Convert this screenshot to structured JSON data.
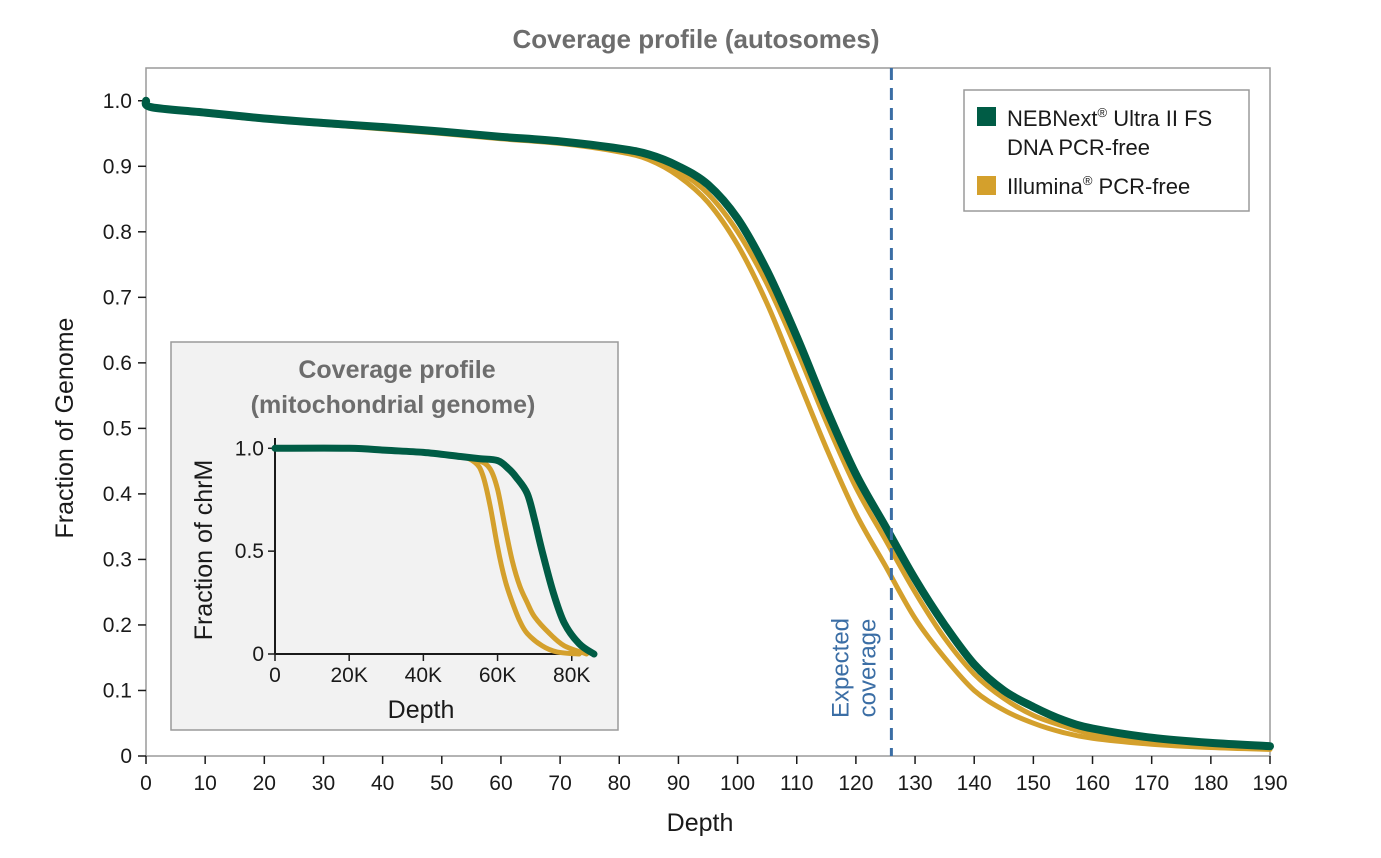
{
  "chart_data": [
    {
      "type": "line",
      "title": "Coverage profile (autosomes)",
      "xlabel": "Depth",
      "ylabel": "Fraction of Genome",
      "xlim": [
        0,
        190
      ],
      "ylim": [
        0,
        1.05
      ],
      "x_ticks": [
        "0",
        "10",
        "20",
        "30",
        "40",
        "50",
        "60",
        "70",
        "80",
        "90",
        "100",
        "110",
        "120",
        "130",
        "140",
        "150",
        "160",
        "170",
        "180",
        "190"
      ],
      "y_ticks": [
        "0",
        "0.1",
        "0.2",
        "0.3",
        "0.4",
        "0.5",
        "0.6",
        "0.7",
        "0.8",
        "0.9",
        "1.0"
      ],
      "grid": false,
      "legend": {
        "placement": "top-right",
        "entries": [
          {
            "label_main": "NEBNext",
            "label_sup": "®",
            "label_rest": " Ultra II FS",
            "label_line2": "DNA PCR-free",
            "color": "#005c45"
          },
          {
            "label_main": "Illumina",
            "label_sup": "®",
            "label_rest": " PCR-free",
            "label_line2": "",
            "color": "#d4a02c"
          }
        ]
      },
      "annotation": {
        "x": 126,
        "line1": "Expected",
        "line2": "coverage",
        "color": "#3b6ea5"
      },
      "series": [
        {
          "group": "NEBNext Ultra II FS DNA PCR-free",
          "color": "#005c45",
          "x": [
            0,
            1,
            10,
            20,
            30,
            40,
            50,
            60,
            70,
            80,
            85,
            90,
            95,
            100,
            105,
            110,
            115,
            120,
            125,
            130,
            135,
            140,
            145,
            150,
            155,
            160,
            170,
            180,
            190
          ],
          "y": [
            1.0,
            0.99,
            0.982,
            0.973,
            0.966,
            0.96,
            0.953,
            0.945,
            0.938,
            0.927,
            0.918,
            0.9,
            0.872,
            0.82,
            0.74,
            0.64,
            0.53,
            0.43,
            0.35,
            0.27,
            0.2,
            0.14,
            0.1,
            0.075,
            0.055,
            0.042,
            0.028,
            0.02,
            0.015
          ]
        },
        {
          "group": "Illumina PCR-free",
          "color": "#d4a02c",
          "x": [
            0,
            1,
            10,
            20,
            30,
            40,
            50,
            60,
            70,
            80,
            85,
            90,
            95,
            100,
            105,
            110,
            115,
            120,
            125,
            130,
            135,
            140,
            145,
            150,
            155,
            160,
            170,
            180,
            190
          ],
          "y": [
            1.0,
            0.99,
            0.981,
            0.972,
            0.965,
            0.958,
            0.951,
            0.944,
            0.937,
            0.926,
            0.914,
            0.893,
            0.858,
            0.8,
            0.72,
            0.62,
            0.51,
            0.41,
            0.33,
            0.25,
            0.18,
            0.125,
            0.088,
            0.062,
            0.046,
            0.034,
            0.022,
            0.016,
            0.012
          ]
        },
        {
          "group": "Illumina PCR-free",
          "color": "#d4a02c",
          "x": [
            0,
            1,
            10,
            20,
            30,
            40,
            50,
            60,
            70,
            80,
            85,
            90,
            95,
            100,
            105,
            110,
            115,
            120,
            125,
            130,
            135,
            140,
            145,
            150,
            155,
            160,
            170,
            180,
            190
          ],
          "y": [
            1.0,
            0.99,
            0.98,
            0.971,
            0.964,
            0.957,
            0.95,
            0.942,
            0.935,
            0.922,
            0.91,
            0.885,
            0.845,
            0.78,
            0.69,
            0.58,
            0.47,
            0.37,
            0.29,
            0.21,
            0.15,
            0.1,
            0.07,
            0.05,
            0.036,
            0.027,
            0.018,
            0.013,
            0.01
          ]
        }
      ]
    },
    {
      "type": "line",
      "title_line1": "Coverage profile",
      "title_line2": "(mitochondrial genome)",
      "xlabel": "Depth",
      "ylabel": "Fraction of chrM",
      "xlim": [
        0,
        86000
      ],
      "ylim": [
        0,
        1.05
      ],
      "x_ticks": [
        {
          "value": 0,
          "label": "0"
        },
        {
          "value": 20000,
          "label": "20K"
        },
        {
          "value": 40000,
          "label": "40K"
        },
        {
          "value": 60000,
          "label": "60K"
        },
        {
          "value": 80000,
          "label": "80K"
        }
      ],
      "y_ticks": [
        {
          "value": 0,
          "label": "0"
        },
        {
          "value": 0.5,
          "label": "0.5"
        },
        {
          "value": 1.0,
          "label": "1.0"
        }
      ],
      "series": [
        {
          "group": "NEBNext Ultra II FS DNA PCR-free",
          "color": "#005c45",
          "x": [
            0,
            20000,
            30000,
            40000,
            50000,
            55000,
            60000,
            63000,
            65000,
            68000,
            70000,
            72000,
            75000,
            78000,
            82000,
            86000
          ],
          "y": [
            1.0,
            1.0,
            0.99,
            0.98,
            0.96,
            0.95,
            0.94,
            0.9,
            0.86,
            0.78,
            0.65,
            0.5,
            0.3,
            0.15,
            0.05,
            0.0
          ]
        },
        {
          "group": "Illumina PCR-free",
          "color": "#d4a02c",
          "x": [
            0,
            20000,
            30000,
            40000,
            50000,
            55000,
            58000,
            60000,
            62000,
            64000,
            66000,
            68000,
            70000,
            74000,
            78000,
            84000
          ],
          "y": [
            1.0,
            1.0,
            0.99,
            0.98,
            0.96,
            0.94,
            0.9,
            0.8,
            0.62,
            0.45,
            0.33,
            0.25,
            0.18,
            0.1,
            0.04,
            0.0
          ]
        },
        {
          "group": "Illumina PCR-free",
          "color": "#d4a02c",
          "x": [
            0,
            20000,
            30000,
            40000,
            50000,
            54000,
            56000,
            58000,
            60000,
            62000,
            64000,
            66000,
            68000,
            72000,
            76000,
            82000
          ],
          "y": [
            1.0,
            1.0,
            0.99,
            0.98,
            0.96,
            0.93,
            0.87,
            0.72,
            0.52,
            0.36,
            0.25,
            0.16,
            0.1,
            0.04,
            0.01,
            0.0
          ]
        }
      ]
    }
  ]
}
